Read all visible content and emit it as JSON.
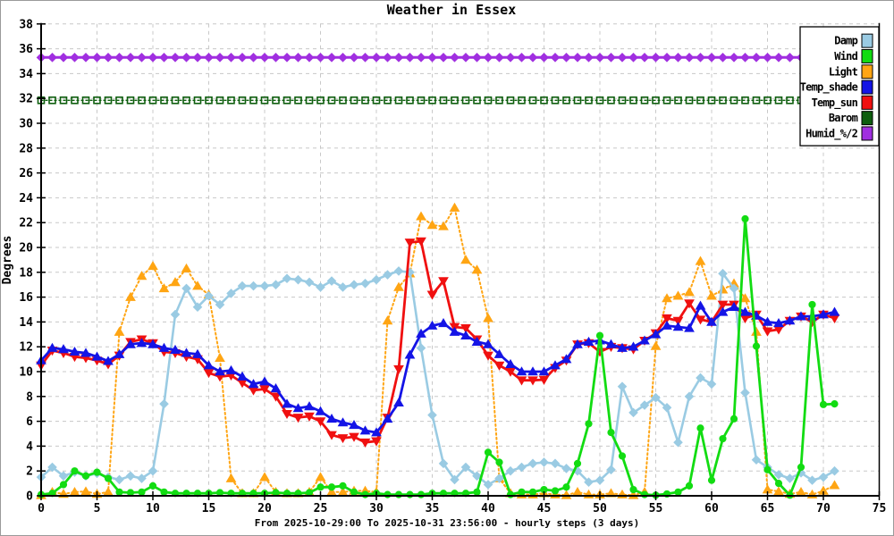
{
  "title": "Weather in Essex",
  "y_axis": {
    "label": "Degrees",
    "min": 0,
    "max": 38,
    "tick_step": 2,
    "ticks": [
      0,
      2,
      4,
      6,
      8,
      10,
      12,
      14,
      16,
      18,
      20,
      22,
      24,
      26,
      28,
      30,
      32,
      34,
      36,
      38
    ]
  },
  "x_axis": {
    "label": "From 2025-10-29:00 To 2025-10-31 23:56:00 - hourly steps (3 days)",
    "min": 0,
    "max": 75,
    "tick_step": 5,
    "ticks": [
      0,
      5,
      10,
      15,
      20,
      25,
      30,
      35,
      40,
      45,
      50,
      55,
      60,
      65,
      70,
      75
    ]
  },
  "legend": {
    "position": "top-right",
    "entries": [
      "Damp",
      "Wind",
      "Light",
      "Temp_shade",
      "Temp_sun",
      "Barom",
      "Humid_%/2"
    ]
  },
  "chart_data": {
    "type": "line",
    "title": "Weather in Essex",
    "xlabel": "From 2025-10-29:00 To 2025-10-31 23:56:00 - hourly steps (3 days)",
    "ylabel": "Degrees",
    "xlim": [
      0,
      75
    ],
    "ylim": [
      0,
      38
    ],
    "grid": true,
    "x": [
      0,
      1,
      2,
      3,
      4,
      5,
      6,
      7,
      8,
      9,
      10,
      11,
      12,
      13,
      14,
      15,
      16,
      17,
      18,
      19,
      20,
      21,
      22,
      23,
      24,
      25,
      26,
      27,
      28,
      29,
      30,
      31,
      32,
      33,
      34,
      35,
      36,
      37,
      38,
      39,
      40,
      41,
      42,
      43,
      44,
      45,
      46,
      47,
      48,
      49,
      50,
      51,
      52,
      53,
      54,
      55,
      56,
      57,
      58,
      59,
      60,
      61,
      62,
      63,
      64,
      65,
      66,
      67,
      68,
      69,
      70,
      71
    ],
    "series": [
      {
        "name": "Damp",
        "color": "#9ACBE3",
        "marker": "diamond",
        "line_style": "solid",
        "values": [
          1.5,
          2.3,
          1.6,
          1.9,
          1.6,
          1.8,
          1.5,
          1.3,
          1.6,
          1.4,
          2.0,
          7.4,
          14.6,
          16.7,
          15.2,
          16.1,
          15.4,
          16.3,
          16.9,
          16.9,
          16.9,
          17.0,
          17.5,
          17.4,
          17.2,
          16.8,
          17.3,
          16.8,
          17.0,
          17.1,
          17.4,
          17.8,
          18.1,
          18.0,
          11.9,
          6.5,
          2.6,
          1.3,
          2.3,
          1.6,
          0.9,
          1.4,
          2.0,
          2.3,
          2.6,
          2.7,
          2.6,
          2.2,
          2.0,
          1.1,
          1.25,
          2.1,
          8.8,
          6.7,
          7.3,
          7.9,
          7.1,
          4.3,
          8.0,
          9.5,
          9.0,
          17.9,
          16.7,
          8.3,
          2.9,
          2.3,
          1.7,
          1.4,
          1.85,
          1.25,
          1.5,
          2.0
        ]
      },
      {
        "name": "Wind",
        "color": "#12DC12",
        "marker": "circle",
        "line_style": "solid",
        "values": [
          0.1,
          0.2,
          0.9,
          2.0,
          1.6,
          1.9,
          1.4,
          0.3,
          0.25,
          0.3,
          0.8,
          0.3,
          0.2,
          0.2,
          0.2,
          0.2,
          0.25,
          0.2,
          0.2,
          0.2,
          0.2,
          0.25,
          0.2,
          0.2,
          0.25,
          0.7,
          0.7,
          0.8,
          0.3,
          0.1,
          0.2,
          0.1,
          0.1,
          0.1,
          0.1,
          0.2,
          0.2,
          0.2,
          0.2,
          0.3,
          3.5,
          2.7,
          0.1,
          0.3,
          0.3,
          0.5,
          0.4,
          0.7,
          2.6,
          5.8,
          12.9,
          5.1,
          3.2,
          0.5,
          0.1,
          0.05,
          0.15,
          0.3,
          0.8,
          5.45,
          1.25,
          4.6,
          6.2,
          22.3,
          12.05,
          2.1,
          1.0,
          0.05,
          2.3,
          15.4,
          7.35,
          7.4
        ]
      },
      {
        "name": "Light",
        "color": "#FFA513",
        "marker": "triangle-up",
        "line_style": "dotted",
        "values": [
          0.05,
          0.3,
          0.15,
          0.3,
          0.35,
          0.15,
          0.3,
          13.2,
          16.0,
          17.7,
          18.5,
          16.7,
          17.2,
          18.3,
          16.9,
          16.2,
          11.1,
          1.4,
          0.2,
          0.2,
          1.5,
          0.3,
          0.2,
          0.2,
          0.3,
          1.5,
          0.3,
          0.3,
          0.4,
          0.4,
          0.3,
          14.1,
          16.8,
          17.9,
          22.5,
          21.8,
          21.7,
          23.2,
          19.0,
          18.2,
          14.3,
          1.4,
          0.2,
          0.1,
          0.1,
          0.2,
          0.1,
          0.05,
          0.3,
          0.1,
          0.1,
          0.2,
          0.1,
          0.05,
          0.3,
          12.05,
          15.9,
          16.1,
          16.4,
          18.9,
          16.1,
          16.6,
          17.1,
          15.9,
          13.2,
          0.5,
          0.35,
          0.15,
          0.3,
          0.1,
          0.4,
          0.85
        ]
      },
      {
        "name": "Temp_shade",
        "color": "#1414E6",
        "marker": "triangle-up",
        "line_style": "solid",
        "values": [
          10.9,
          11.9,
          11.8,
          11.6,
          11.5,
          11.2,
          10.85,
          11.4,
          12.2,
          12.3,
          12.2,
          11.9,
          11.75,
          11.5,
          11.4,
          10.5,
          10.0,
          10.1,
          9.6,
          9.0,
          9.2,
          8.65,
          7.4,
          7.05,
          7.2,
          6.8,
          6.2,
          5.9,
          5.7,
          5.25,
          5.1,
          6.2,
          7.5,
          11.35,
          13.05,
          13.7,
          13.9,
          13.2,
          12.9,
          12.4,
          12.2,
          11.4,
          10.6,
          10.0,
          10.0,
          10.0,
          10.5,
          11.0,
          12.2,
          12.4,
          12.5,
          12.2,
          11.9,
          12.0,
          12.5,
          13.0,
          13.7,
          13.6,
          13.5,
          15.3,
          14.0,
          14.8,
          15.2,
          14.8,
          14.5,
          14.0,
          13.9,
          14.1,
          14.45,
          14.45,
          14.6,
          14.8
        ]
      },
      {
        "name": "Temp_sun",
        "color": "#F01010",
        "marker": "triangle-down",
        "line_style": "solid",
        "values": [
          10.5,
          11.7,
          11.5,
          11.2,
          11.1,
          10.9,
          10.6,
          11.3,
          12.4,
          12.6,
          12.3,
          11.6,
          11.5,
          11.2,
          11.0,
          9.9,
          9.6,
          9.7,
          9.1,
          8.5,
          8.6,
          8.0,
          6.6,
          6.3,
          6.4,
          6.0,
          4.9,
          4.65,
          4.75,
          4.3,
          4.4,
          6.3,
          10.2,
          20.4,
          20.5,
          16.2,
          17.3,
          13.6,
          13.5,
          12.6,
          11.3,
          10.5,
          10.0,
          9.3,
          9.3,
          9.35,
          10.3,
          10.9,
          12.2,
          12.3,
          11.6,
          12.0,
          11.9,
          11.8,
          12.5,
          13.1,
          14.3,
          14.1,
          15.5,
          14.2,
          14.0,
          15.4,
          15.4,
          14.3,
          14.6,
          13.25,
          13.4,
          14.1,
          14.45,
          14.0,
          14.6,
          14.3
        ]
      },
      {
        "name": "Barom",
        "color": "#0E5E0E",
        "marker": "square-open",
        "line_style": "dotted",
        "constant": 31.85
      },
      {
        "name": "Humid_%/2",
        "color": "#A02FE0",
        "marker": "diamond",
        "line_style": "solid",
        "constant": 35.3
      }
    ]
  }
}
